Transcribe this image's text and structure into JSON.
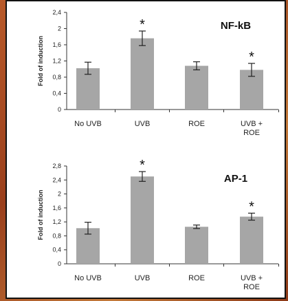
{
  "chart_data": [
    {
      "type": "bar",
      "title": "NF-kB",
      "ylabel": "Fold of induction",
      "xlabel": "",
      "categories": [
        "No UVB",
        "UVB",
        "ROE",
        "UVB + ROE"
      ],
      "values": [
        1.02,
        1.76,
        1.08,
        0.98
      ],
      "errors": [
        0.15,
        0.18,
        0.1,
        0.16
      ],
      "significant": [
        "",
        "*",
        "",
        "*"
      ],
      "ylim": [
        0,
        2.4
      ],
      "yticks": [
        "0",
        "0,4",
        "0,8",
        "1,2",
        "1,6",
        "2",
        "2,4"
      ],
      "bar_color": "#a6a6a6",
      "grid": false
    },
    {
      "type": "bar",
      "title": "AP-1",
      "ylabel": "Fold of induction",
      "xlabel": "",
      "categories": [
        "No UVB",
        "UVB",
        "ROE",
        "UVB + ROE"
      ],
      "values": [
        1.02,
        2.5,
        1.06,
        1.35
      ],
      "errors": [
        0.17,
        0.14,
        0.05,
        0.1
      ],
      "significant": [
        "",
        "*",
        "",
        "*"
      ],
      "ylim": [
        0,
        2.8
      ],
      "yticks": [
        "0",
        "0,4",
        "0,8",
        "1,2",
        "1,6",
        "2",
        "2,4",
        "2,8"
      ],
      "bar_color": "#a6a6a6",
      "grid": false
    }
  ]
}
